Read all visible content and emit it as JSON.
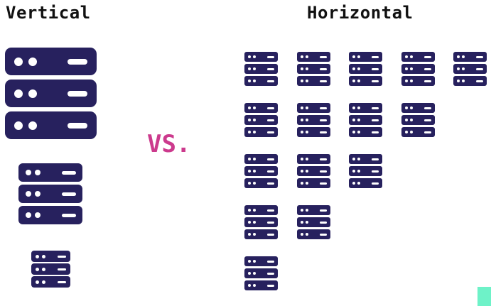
{
  "diagram": {
    "vertical_title": "Vertical",
    "horizontal_title": "Horizontal",
    "vs_label": "VS.",
    "vertical_server_count": 3,
    "horizontal_grid_rows": [
      5,
      4,
      3,
      2,
      1
    ]
  },
  "colors": {
    "server": "#27215e",
    "server_detail": "#ffffff",
    "vs": "#cc3a8d",
    "title": "#111111",
    "corner_marker": "#6ef2c8"
  },
  "icons": {
    "server": "server-stack-icon"
  }
}
